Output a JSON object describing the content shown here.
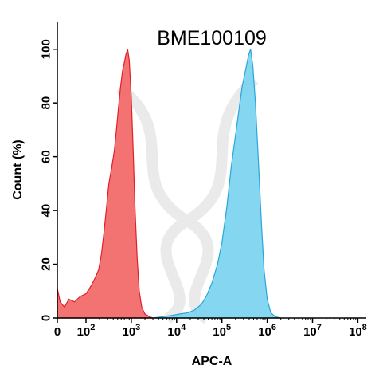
{
  "chart_data": {
    "type": "area",
    "title": "BME100109",
    "xlabel": "APC-A",
    "ylabel": "Count  (%)",
    "x_scale": "biexponential",
    "xlim": [
      0,
      100000000
    ],
    "ylim": [
      0,
      110
    ],
    "y_ticks": [
      0,
      20,
      40,
      60,
      80,
      100
    ],
    "x_ticks": [
      {
        "value": 0,
        "base": "0",
        "exp": ""
      },
      {
        "value": 100,
        "base": "10",
        "exp": "2"
      },
      {
        "value": 1000,
        "base": "10",
        "exp": "3"
      },
      {
        "value": 10000,
        "base": "10",
        "exp": "4"
      },
      {
        "value": 100000,
        "base": "10",
        "exp": "5"
      },
      {
        "value": 1000000,
        "base": "10",
        "exp": "6"
      },
      {
        "value": 10000000,
        "base": "10",
        "exp": "7"
      },
      {
        "value": 100000000,
        "base": "10",
        "exp": "8"
      }
    ],
    "grid": false,
    "series": [
      {
        "color": "#f26b6b",
        "stroke": "#e0202a",
        "points": [
          [
            0,
            11
          ],
          [
            10,
            6
          ],
          [
            25,
            4
          ],
          [
            40,
            7
          ],
          [
            60,
            6
          ],
          [
            80,
            8
          ],
          [
            100,
            9
          ],
          [
            130,
            12
          ],
          [
            160,
            15
          ],
          [
            190,
            18
          ],
          [
            220,
            24
          ],
          [
            250,
            32
          ],
          [
            280,
            40
          ],
          [
            320,
            50
          ],
          [
            370,
            56
          ],
          [
            420,
            62
          ],
          [
            470,
            70
          ],
          [
            520,
            78
          ],
          [
            580,
            86
          ],
          [
            640,
            92
          ],
          [
            700,
            95
          ],
          [
            760,
            98
          ],
          [
            830,
            100
          ],
          [
            900,
            96
          ],
          [
            1000,
            82
          ],
          [
            1100,
            62
          ],
          [
            1200,
            42
          ],
          [
            1350,
            22
          ],
          [
            1500,
            10
          ],
          [
            1700,
            4
          ],
          [
            2000,
            1.5
          ],
          [
            2500,
            0.5
          ],
          [
            3000,
            0
          ]
        ]
      },
      {
        "color": "#7dd4f0",
        "stroke": "#2aa6d8",
        "points": [
          [
            3000,
            0
          ],
          [
            5000,
            0.5
          ],
          [
            8000,
            1
          ],
          [
            12000,
            1.5
          ],
          [
            18000,
            2
          ],
          [
            25000,
            3
          ],
          [
            35000,
            5
          ],
          [
            45000,
            8
          ],
          [
            60000,
            13
          ],
          [
            80000,
            20
          ],
          [
            100000,
            28
          ],
          [
            130000,
            42
          ],
          [
            160000,
            56
          ],
          [
            200000,
            68
          ],
          [
            240000,
            78
          ],
          [
            280000,
            86
          ],
          [
            330000,
            92
          ],
          [
            390000,
            98
          ],
          [
            430000,
            100
          ],
          [
            480000,
            94
          ],
          [
            550000,
            80
          ],
          [
            640000,
            58
          ],
          [
            740000,
            36
          ],
          [
            850000,
            18
          ],
          [
            1000000,
            7
          ],
          [
            1200000,
            2
          ],
          [
            1500000,
            0.5
          ],
          [
            2000000,
            0
          ]
        ]
      }
    ]
  }
}
